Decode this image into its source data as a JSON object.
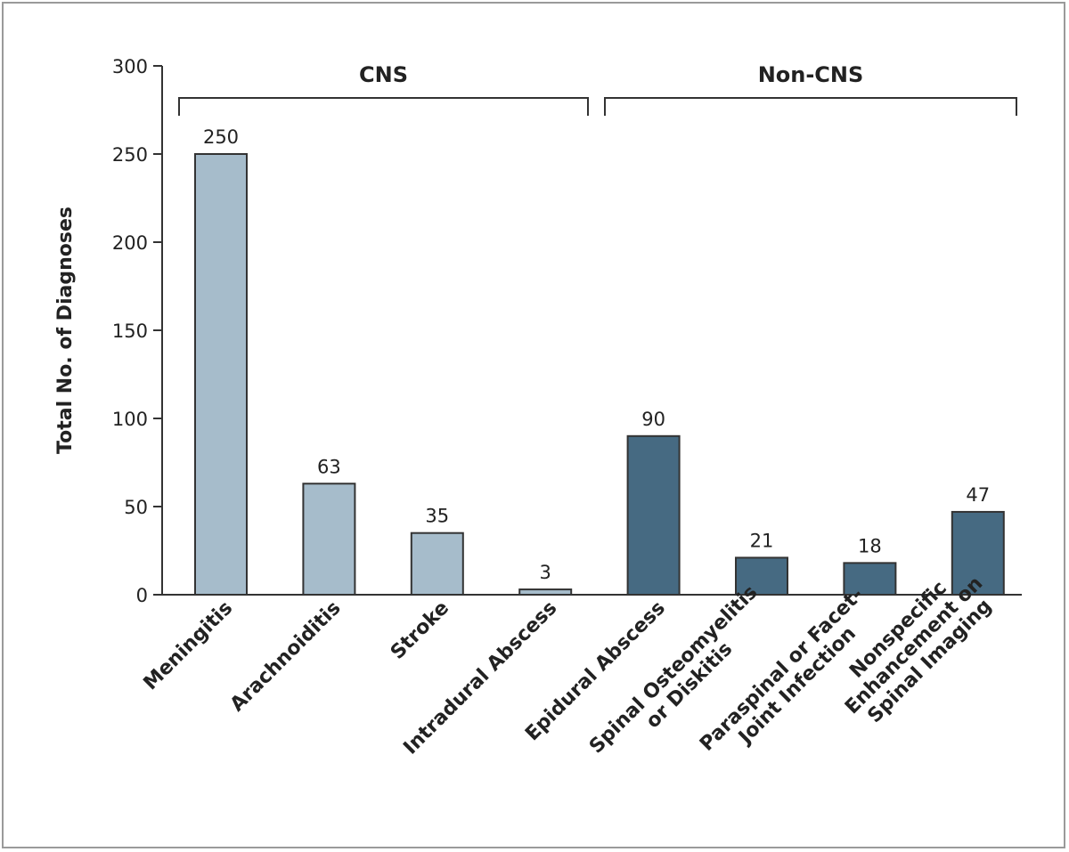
{
  "chart_data": {
    "type": "bar",
    "title": "",
    "xlabel": "",
    "ylabel": "Total No. of Diagnoses",
    "ylim": [
      0,
      300
    ],
    "yticks": [
      0,
      50,
      100,
      150,
      200,
      250,
      300
    ],
    "grid": false,
    "categories": [
      [
        "Meningitis"
      ],
      [
        "Arachnoiditis"
      ],
      [
        "Stroke"
      ],
      [
        "Intradural Abscess"
      ],
      [
        "Epidural Abscess"
      ],
      [
        "Spinal Osteomyelitis",
        "or Diskitis"
      ],
      [
        "Paraspinal or Facet-",
        "Joint Infection"
      ],
      [
        "Nonspecific",
        "Enhancement on",
        "Spinal Imaging"
      ]
    ],
    "values": [
      250,
      63,
      35,
      3,
      90,
      21,
      18,
      47
    ],
    "groups": [
      {
        "name": "CNS",
        "from": 0,
        "to": 3,
        "color": "#a6bccb"
      },
      {
        "name": "Non-CNS",
        "from": 4,
        "to": 7,
        "color": "#466a82"
      }
    ],
    "bar_edge_color": "#333333"
  }
}
